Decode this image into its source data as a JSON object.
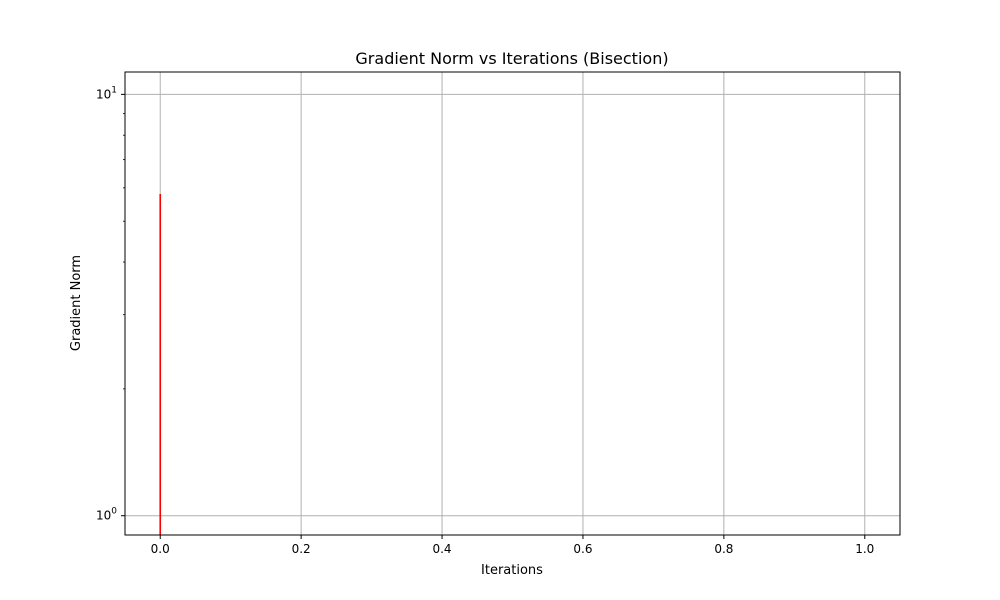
{
  "chart_data": {
    "type": "line",
    "title": "Gradient Norm vs Iterations (Bisection)",
    "xlabel": "Iterations",
    "ylabel": "Gradient Norm",
    "xlim": [
      -0.05,
      1.05
    ],
    "ylim": [
      0.9,
      11.3
    ],
    "yscale": "log",
    "grid": true,
    "x_ticks": [
      {
        "value": 0.0,
        "label": "0.0"
      },
      {
        "value": 0.2,
        "label": "0.2"
      },
      {
        "value": 0.4,
        "label": "0.4"
      },
      {
        "value": 0.6,
        "label": "0.6"
      },
      {
        "value": 0.8,
        "label": "0.8"
      },
      {
        "value": 1.0,
        "label": "1.0"
      }
    ],
    "y_ticks": [
      {
        "value": 1,
        "base": "10",
        "exp": "0"
      },
      {
        "value": 10,
        "base": "10",
        "exp": "1"
      }
    ],
    "y_minor_ticks": [
      2,
      3,
      4,
      5,
      6,
      7,
      8,
      9
    ],
    "series": [
      {
        "color": "#ff0000",
        "x": [
          0,
          0
        ],
        "y": [
          0.9,
          5.8
        ]
      }
    ]
  }
}
